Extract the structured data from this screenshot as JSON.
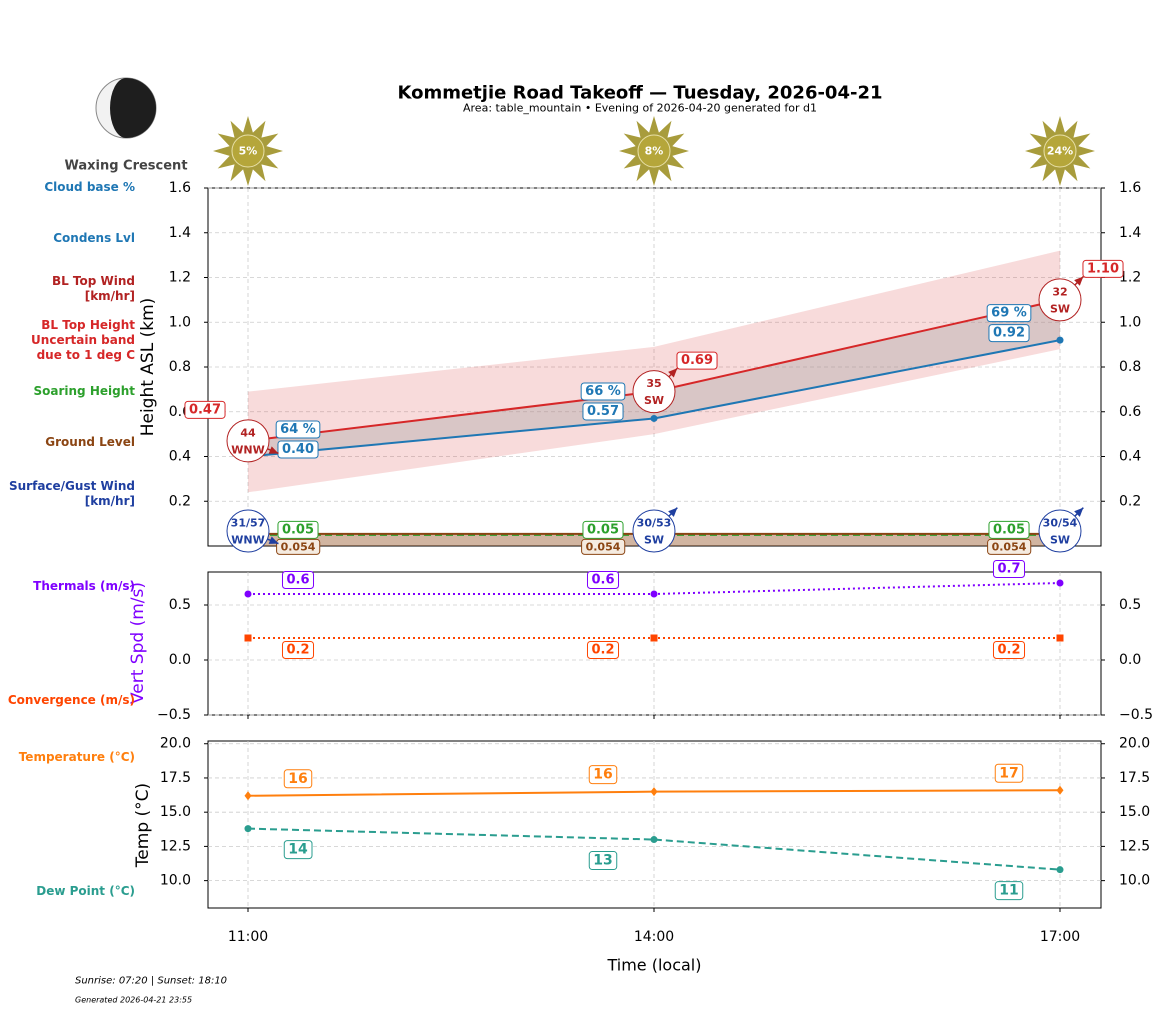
{
  "title": "Kommetjie Road Takeoff — Tuesday, 2026-04-21",
  "subtitle": "Area: table_mountain • Evening of 2026-04-20 generated for d1",
  "moon_phase": "Waxing Crescent",
  "footer": {
    "sun_times": "Sunrise: 07:20 | Sunset: 18:10",
    "generated": "Generated 2026-04-21 23:55"
  },
  "chart_data": [
    {
      "type": "line",
      "ylabel": "Height ASL (km)",
      "ylim": [
        0,
        1.6
      ],
      "yticks": [
        0.2,
        0.4,
        0.6,
        0.8,
        {
          "value": 1.0,
          "label": "1.0"
        },
        1.2,
        1.4,
        1.6
      ],
      "grid": true,
      "cloud_cover": {
        "values": [
          5,
          8,
          24
        ],
        "value_labels": [
          "5%",
          "8%",
          "24%"
        ]
      },
      "series": [
        {
          "name": "Cloud base %",
          "color": "#1f77b4",
          "values": [
            64,
            66,
            69
          ],
          "value_labels": [
            "64 %",
            "66 %",
            "69 %"
          ]
        },
        {
          "name": "Condens Lvl",
          "color": "#1f77b4",
          "values": [
            0.4,
            0.57,
            0.92
          ],
          "value_labels": [
            "0.40",
            "0.57",
            "0.92"
          ],
          "linestyle": "solid",
          "marker": "circle"
        },
        {
          "name": "BL Top Wind [km/hr]",
          "color": "#b22222",
          "values": [
            44,
            35,
            32
          ],
          "directions": [
            "WNW",
            "SW",
            "SW"
          ]
        },
        {
          "name": "BL Top Height Uncertain band due to 1 deg C",
          "color": "#d62728",
          "values": [
            0.47,
            0.69,
            1.1
          ],
          "value_labels": [
            "0.47",
            "0.69",
            "1.10"
          ],
          "low": [
            0.24,
            0.5,
            0.88
          ],
          "high": [
            0.69,
            0.89,
            1.32
          ],
          "linestyle": "solid"
        },
        {
          "name": "Soaring Height",
          "color": "#2ca02c",
          "values": [
            0.05,
            0.05,
            0.05
          ],
          "linestyle": "dashed"
        },
        {
          "name": "Ground Level",
          "color": "#8b4513",
          "values": [
            0.054,
            0.054,
            0.054
          ],
          "linestyle": "solid",
          "fill": true
        },
        {
          "name": "Surface/Gust Wind [km/hr]",
          "color": "#1f3fa0",
          "values": [
            31,
            30,
            30
          ],
          "gusts": [
            57,
            53,
            54
          ],
          "value_labels": [
            "31/57",
            "30/53",
            "30/54"
          ],
          "directions": [
            "WNW",
            "SW",
            "SW"
          ]
        }
      ]
    },
    {
      "type": "line",
      "ylabel": "Vert Spd (m/s)",
      "ylabel_color": "#7f00ff",
      "ylim": [
        -0.5,
        0.8
      ],
      "yticks": [
        {
          "value": -0.5,
          "label": "−0.5"
        },
        {
          "value": 0,
          "label": "0.0"
        },
        0.5
      ],
      "grid": true,
      "series": [
        {
          "name": "Thermals (m/s)",
          "color": "#7f00ff",
          "values": [
            0.6,
            0.6,
            0.7
          ],
          "linestyle": "dotted",
          "marker": "circle"
        },
        {
          "name": "Convergence (m/s)",
          "color": "#ff4500",
          "values": [
            0.2,
            0.2,
            0.2
          ],
          "linestyle": "dotted",
          "marker": "square"
        }
      ]
    },
    {
      "type": "line",
      "ylabel": "Temp (°C)",
      "xlabel": "Time (local)",
      "categories": [
        "11:00",
        "14:00",
        "17:00"
      ],
      "ylim": [
        8,
        20.2
      ],
      "yticks": [
        {
          "value": 10,
          "label": "10.0"
        },
        12.5,
        {
          "value": 15,
          "label": "15.0"
        },
        17.5,
        {
          "value": 20,
          "label": "20.0"
        }
      ],
      "grid": true,
      "series": [
        {
          "name": "Temperature (°C)",
          "color": "#ff7f0e",
          "values": [
            16.2,
            16.5,
            16.6
          ],
          "value_labels": [
            "16",
            "16",
            "17"
          ],
          "linestyle": "solid",
          "marker": "diamond"
        },
        {
          "name": "Dew Point (°C)",
          "color": "#2a9d8f",
          "values": [
            13.8,
            13.0,
            10.8
          ],
          "value_labels": [
            "14",
            "13",
            "11"
          ],
          "linestyle": "dashed",
          "marker": "circle"
        }
      ]
    }
  ]
}
